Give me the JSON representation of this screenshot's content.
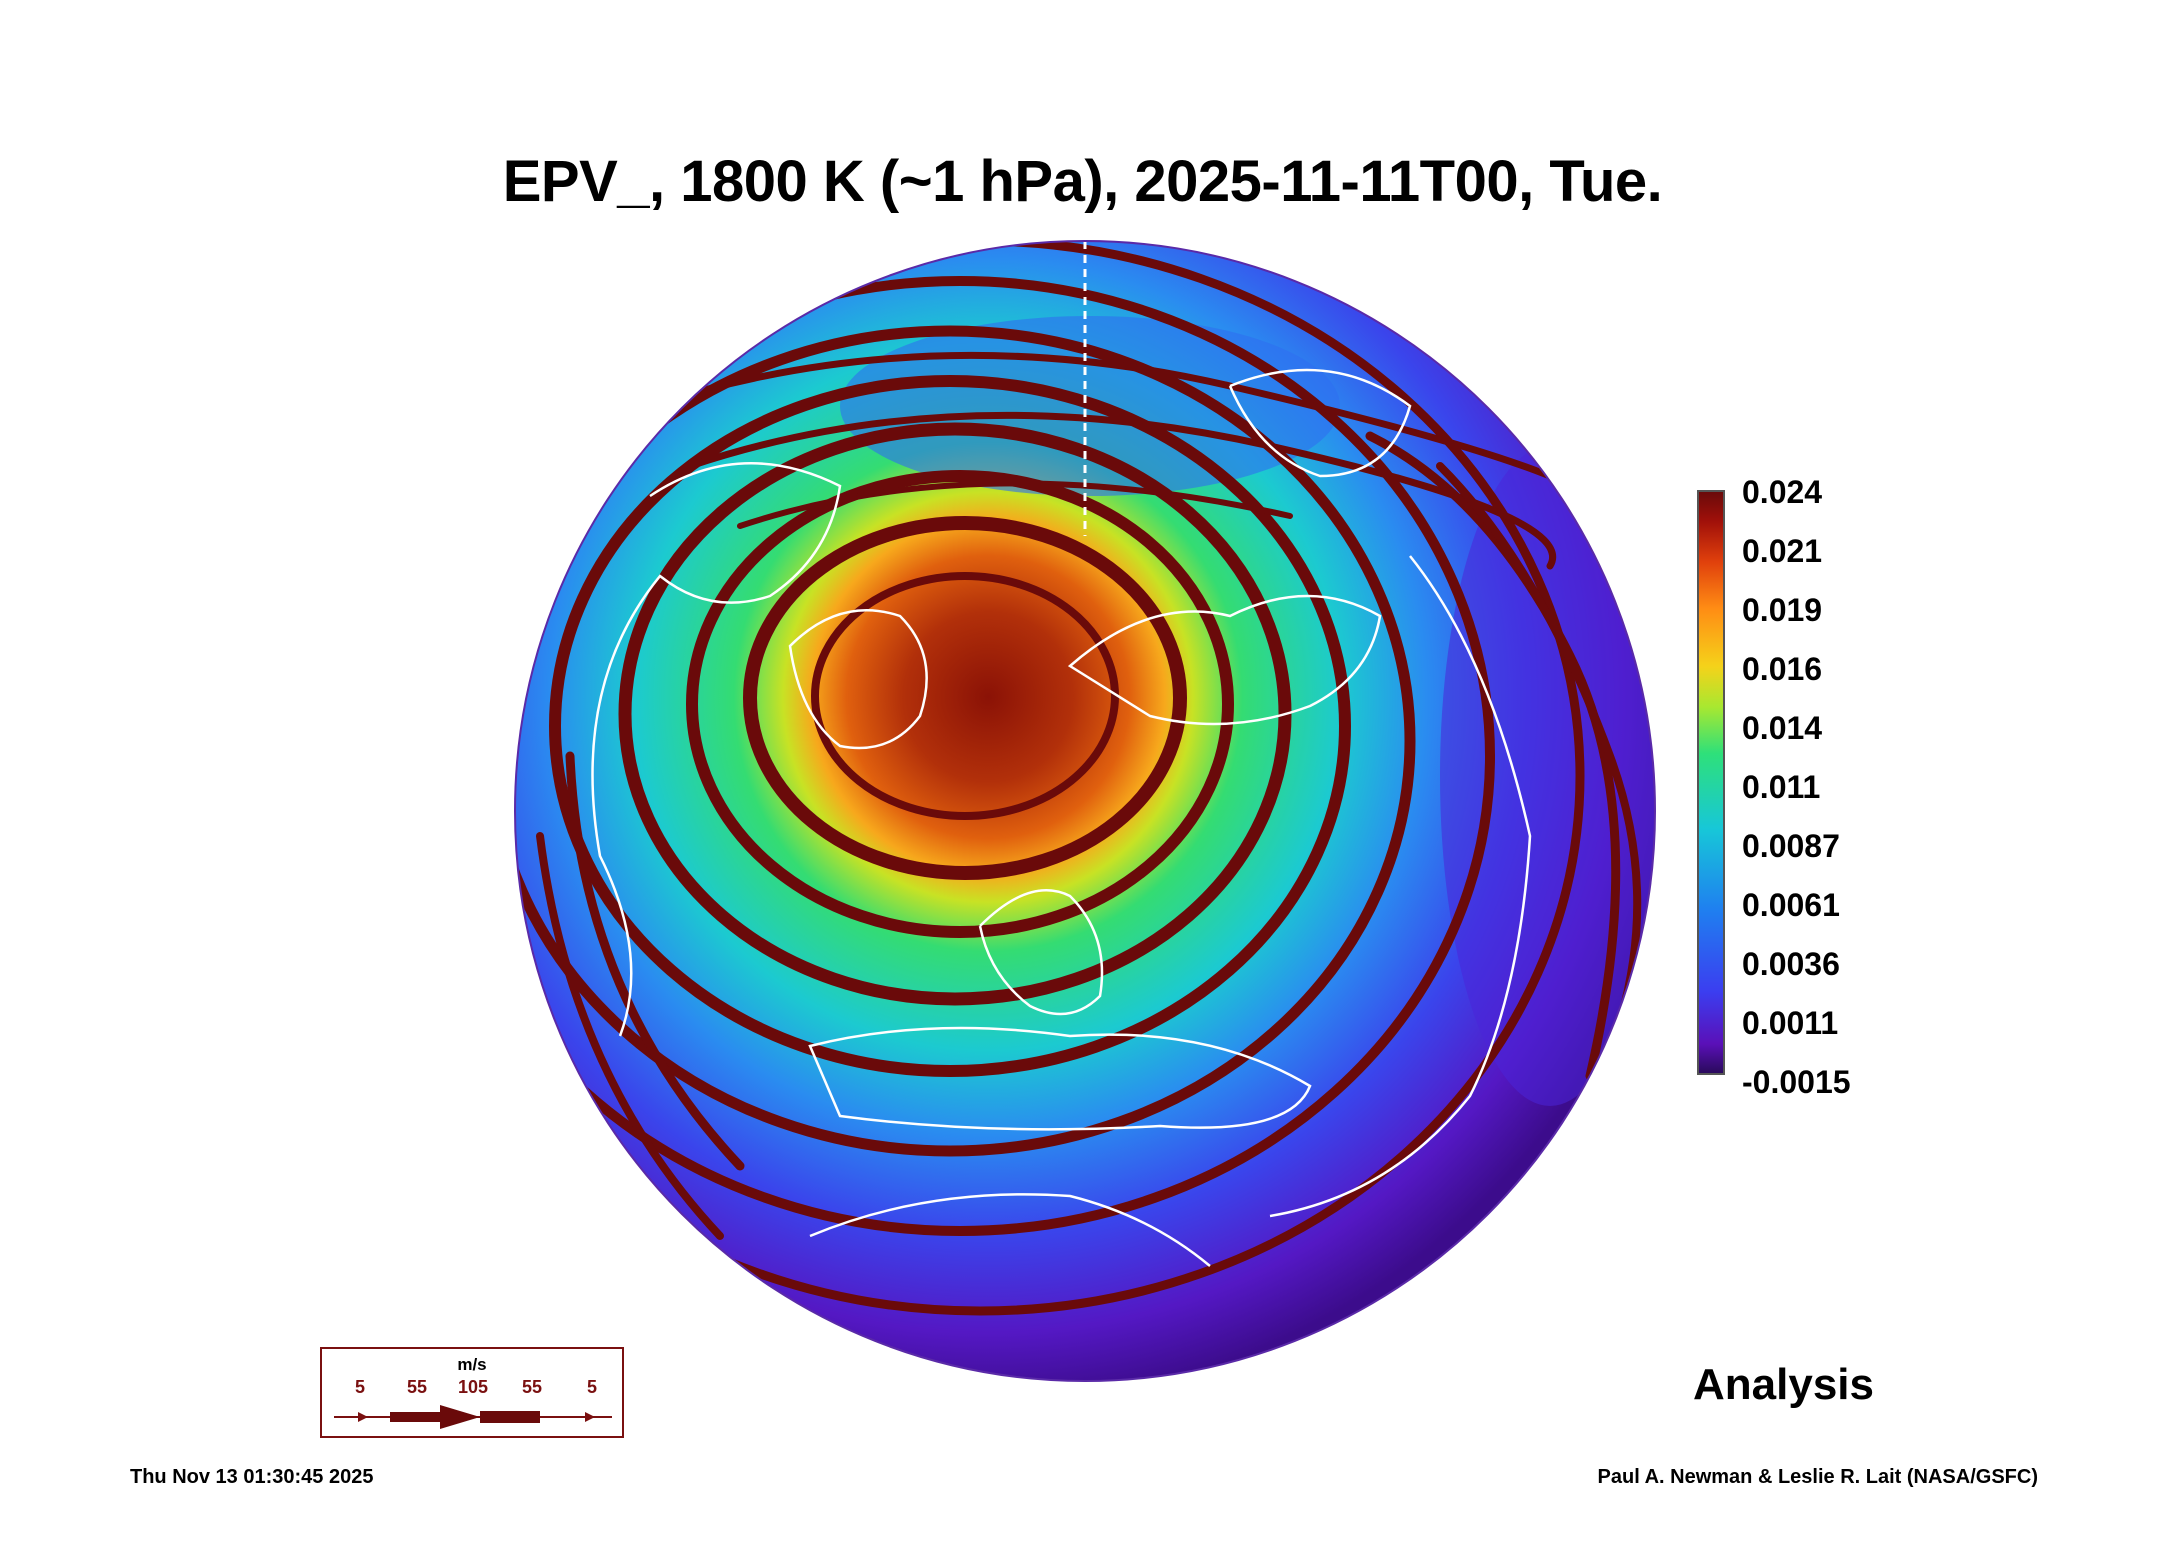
{
  "title": "EPV_, 1800 K (~1 hPa), 2025-11-11T00, Tue.",
  "colorbar": {
    "labels": [
      "0.024",
      "0.021",
      "0.019",
      "0.016",
      "0.014",
      "0.011",
      "0.0087",
      "0.0061",
      "0.0036",
      "0.0011",
      "-0.0015"
    ]
  },
  "legend": {
    "unit": "m/s",
    "speeds": [
      "5",
      "55",
      "105",
      "55",
      "5"
    ]
  },
  "analysis_label": "Analysis",
  "footer": {
    "timestamp": "Thu Nov 13 01:30:45 2025",
    "credit": "Paul A. Newman & Leslie R. Lait (NASA/GSFC)"
  },
  "colors": {
    "streamline": "#6a0a0a",
    "vortex_core": "#8b1a06",
    "coastline": "#ffffff"
  }
}
